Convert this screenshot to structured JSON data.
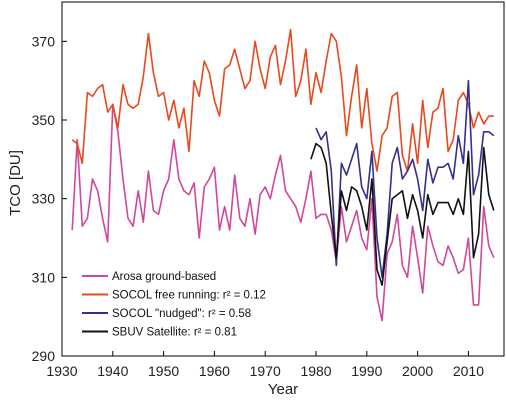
{
  "chart_data": {
    "type": "line",
    "title": "",
    "xlabel": "Year",
    "ylabel": "TCO [DU]",
    "xlim": [
      1930,
      2017
    ],
    "ylim": [
      290,
      380
    ],
    "x_ticks": [
      1930,
      1940,
      1950,
      1960,
      1970,
      1980,
      1990,
      2000,
      2010
    ],
    "y_ticks": [
      290,
      310,
      330,
      350,
      370
    ],
    "grid": false,
    "legend_position": "bottom-left",
    "series": [
      {
        "name": "Arosa ground-based",
        "color": "#d0489a",
        "x": [
          1932,
          1933,
          1934,
          1935,
          1936,
          1937,
          1938,
          1939,
          1940,
          1941,
          1942,
          1943,
          1944,
          1945,
          1946,
          1947,
          1948,
          1949,
          1950,
          1951,
          1952,
          1953,
          1954,
          1955,
          1956,
          1957,
          1958,
          1959,
          1960,
          1961,
          1962,
          1963,
          1964,
          1965,
          1966,
          1967,
          1968,
          1969,
          1970,
          1971,
          1972,
          1973,
          1974,
          1975,
          1976,
          1977,
          1978,
          1979,
          1980,
          1981,
          1982,
          1983,
          1984,
          1985,
          1986,
          1987,
          1988,
          1989,
          1990,
          1991,
          1992,
          1993,
          1994,
          1995,
          1996,
          1997,
          1998,
          1999,
          2000,
          2001,
          2002,
          2003,
          2004,
          2005,
          2006,
          2007,
          2008,
          2009,
          2010,
          2011,
          2012,
          2013,
          2014,
          2015
        ],
        "values": [
          322,
          345,
          323,
          325,
          335,
          332,
          325,
          319,
          354,
          347,
          335,
          325,
          323,
          332,
          324,
          337,
          327,
          326,
          332,
          335,
          345,
          335,
          332,
          331,
          334,
          320,
          333,
          335,
          338,
          322,
          328,
          322,
          336,
          325,
          323,
          330,
          321,
          331,
          333,
          330,
          336,
          341,
          332,
          330,
          328,
          324,
          330,
          337,
          325,
          326,
          326,
          322,
          314,
          328,
          319,
          323,
          327,
          320,
          317,
          330,
          305,
          299,
          316,
          319,
          326,
          313,
          310,
          323,
          315,
          306,
          323,
          318,
          314,
          313,
          318,
          315,
          311,
          312,
          320,
          303,
          303,
          328,
          318,
          315
        ]
      },
      {
        "name": "SOCOL free running: r² = 0.12",
        "color": "#e8491d",
        "x": [
          1932,
          1933,
          1934,
          1935,
          1936,
          1937,
          1938,
          1939,
          1940,
          1941,
          1942,
          1943,
          1944,
          1945,
          1946,
          1947,
          1948,
          1949,
          1950,
          1951,
          1952,
          1953,
          1954,
          1955,
          1956,
          1957,
          1958,
          1959,
          1960,
          1961,
          1962,
          1963,
          1964,
          1965,
          1966,
          1967,
          1968,
          1969,
          1970,
          1971,
          1972,
          1973,
          1974,
          1975,
          1976,
          1977,
          1978,
          1979,
          1980,
          1981,
          1982,
          1983,
          1984,
          1985,
          1986,
          1987,
          1988,
          1989,
          1990,
          1991,
          1992,
          1993,
          1994,
          1995,
          1996,
          1997,
          1998,
          1999,
          2000,
          2001,
          2002,
          2003,
          2004,
          2005,
          2006,
          2007,
          2008,
          2009,
          2010,
          2011,
          2012,
          2013,
          2014,
          2015
        ],
        "values": [
          345,
          344,
          339,
          357,
          356,
          358,
          359,
          352,
          354,
          348,
          359,
          354,
          353,
          354,
          361,
          372,
          362,
          356,
          357,
          350,
          355,
          348,
          353,
          342,
          360,
          356,
          365,
          362,
          355,
          351,
          363,
          364,
          368,
          363,
          358,
          360,
          370,
          363,
          358,
          366,
          369,
          359,
          365,
          373,
          356,
          360,
          368,
          354,
          362,
          357,
          365,
          372,
          370,
          361,
          346,
          356,
          364,
          348,
          358,
          344,
          337,
          346,
          348,
          356,
          357,
          341,
          337,
          349,
          339,
          355,
          343,
          352,
          353,
          358,
          342,
          345,
          355,
          357,
          354,
          348,
          352,
          349,
          351,
          351
        ]
      },
      {
        "name": "SOCOL \"nudged\": r² = 0.58",
        "color": "#33308f",
        "x": [
          1980,
          1981,
          1982,
          1983,
          1984,
          1985,
          1986,
          1987,
          1988,
          1989,
          1990,
          1991,
          1992,
          1993,
          1994,
          1995,
          1996,
          1997,
          1998,
          1999,
          2000,
          2001,
          2002,
          2003,
          2004,
          2005,
          2006,
          2007,
          2008,
          2009,
          2010,
          2011,
          2012,
          2013,
          2014,
          2015
        ],
        "values": [
          348,
          345,
          347,
          337,
          313,
          339,
          336,
          340,
          344,
          333,
          330,
          342,
          320,
          310,
          321,
          339,
          343,
          335,
          337,
          340,
          335,
          327,
          340,
          334,
          338,
          338,
          339,
          335,
          346,
          339,
          360,
          331,
          336,
          347,
          347,
          346
        ]
      },
      {
        "name": "SBUV Satellite: r² = 0.81",
        "color": "#111111",
        "x": [
          1979,
          1980,
          1981,
          1982,
          1983,
          1984,
          1985,
          1986,
          1987,
          1988,
          1989,
          1990,
          1991,
          1992,
          1993,
          1994,
          1995,
          1996,
          1997,
          1998,
          1999,
          2000,
          2001,
          2002,
          2003,
          2004,
          2005,
          2006,
          2007,
          2008,
          2009,
          2010,
          2011,
          2012,
          2013,
          2014,
          2015
        ],
        "values": [
          340,
          344,
          343,
          339,
          326,
          315,
          332,
          327,
          333,
          332,
          328,
          322,
          335,
          312,
          308,
          319,
          330,
          331,
          332,
          325,
          331,
          327,
          320,
          331,
          326,
          329,
          329,
          329,
          326,
          330,
          326,
          342,
          315,
          321,
          343,
          331,
          327
        ]
      }
    ]
  }
}
